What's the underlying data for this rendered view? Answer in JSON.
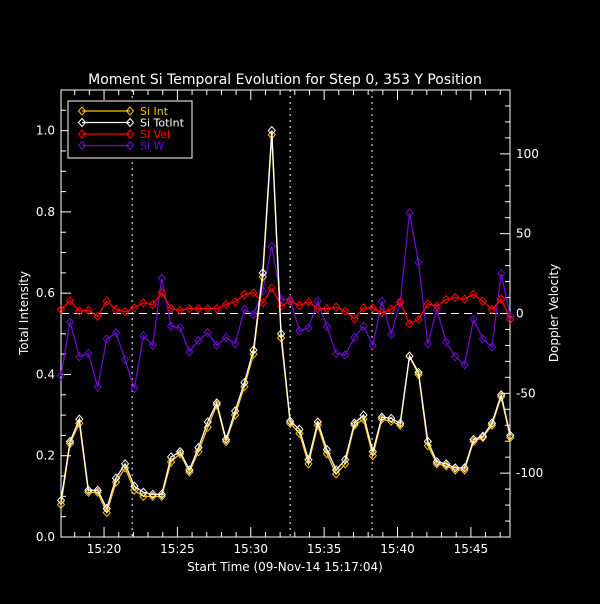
{
  "chart_data": {
    "type": "line",
    "title": "Moment Si Temporal Evolution for Step 0, 353 Y Position",
    "xlabel": "Start Time (09-Nov-14 15:17:04)",
    "ylabel": "Total Intensity",
    "y2label": "Doppler Velocity",
    "xlim": [
      "15:17:04",
      "15:47:40"
    ],
    "ylim": [
      0,
      1.1
    ],
    "y2lim": [
      -140,
      140
    ],
    "x_ticks": [
      "15:20",
      "15:25",
      "15:30",
      "15:35",
      "15:40",
      "15:45"
    ],
    "y_ticks": [
      "0.0",
      "0.2",
      "0.4",
      "0.6",
      "0.8",
      "1.0"
    ],
    "y2_ticks": [
      "-100",
      "-50",
      "0",
      "50",
      "100"
    ],
    "grid": false,
    "legend_position": "top-left",
    "reference_line_y2": 0,
    "vertical_markers": [
      "15:21:55",
      "15:32:41",
      "15:38:16"
    ],
    "x": [
      "15:17:04",
      "15:17:41",
      "15:18:19",
      "15:18:56",
      "15:19:34",
      "15:20:11",
      "15:20:49",
      "15:21:26",
      "15:22:04",
      "15:22:41",
      "15:23:19",
      "15:23:56",
      "15:24:34",
      "15:25:11",
      "15:25:49",
      "15:26:26",
      "15:27:04",
      "15:27:41",
      "15:28:19",
      "15:28:56",
      "15:29:34",
      "15:30:11",
      "15:30:49",
      "15:31:26",
      "15:32:04",
      "15:32:41",
      "15:33:19",
      "15:33:56",
      "15:34:34",
      "15:35:11",
      "15:35:49",
      "15:36:26",
      "15:37:04",
      "15:37:41",
      "15:38:19",
      "15:38:56",
      "15:39:34",
      "15:40:11",
      "15:40:49",
      "15:41:26",
      "15:42:04",
      "15:42:41",
      "15:43:19",
      "15:43:56",
      "15:44:34",
      "15:45:11",
      "15:45:49",
      "15:46:26",
      "15:47:04",
      "15:47:41"
    ],
    "series": [
      {
        "name": "Si Int",
        "axis": "left",
        "color": "#ffc000",
        "values": [
          0.08,
          0.23,
          0.28,
          0.11,
          0.11,
          0.06,
          0.135,
          0.17,
          0.115,
          0.1,
          0.1,
          0.1,
          0.185,
          0.205,
          0.16,
          0.21,
          0.27,
          0.325,
          0.235,
          0.3,
          0.37,
          0.45,
          0.64,
          0.99,
          0.49,
          0.28,
          0.255,
          0.18,
          0.275,
          0.205,
          0.155,
          0.18,
          0.275,
          0.29,
          0.2,
          0.29,
          0.285,
          0.275,
          0.445,
          0.4,
          0.225,
          0.18,
          0.175,
          0.165,
          0.165,
          0.235,
          0.245,
          0.275,
          0.345,
          0.245
        ]
      },
      {
        "name": "Si TotInt",
        "axis": "left",
        "color": "#ffffff",
        "values": [
          0.09,
          0.235,
          0.29,
          0.115,
          0.115,
          0.07,
          0.145,
          0.18,
          0.125,
          0.11,
          0.105,
          0.105,
          0.197,
          0.21,
          0.165,
          0.22,
          0.283,
          0.33,
          0.24,
          0.31,
          0.38,
          0.46,
          0.65,
          1.0,
          0.5,
          0.285,
          0.265,
          0.19,
          0.283,
          0.215,
          0.165,
          0.19,
          0.28,
          0.3,
          0.21,
          0.295,
          0.292,
          0.28,
          0.445,
          0.405,
          0.235,
          0.185,
          0.18,
          0.17,
          0.17,
          0.24,
          0.248,
          0.28,
          0.35,
          0.25
        ]
      },
      {
        "name": "Si Vel",
        "axis": "right",
        "color": "#ff0000",
        "values": [
          2.5,
          8,
          1.5,
          2,
          -1.7,
          7.7,
          2.5,
          1,
          3.5,
          6.7,
          5.6,
          13,
          3,
          2,
          3,
          3,
          3,
          3,
          5.6,
          7.3,
          12,
          13,
          6.7,
          16,
          4.6,
          7.7,
          5,
          7.3,
          3,
          3,
          4,
          1.5,
          -3.3,
          3.5,
          3.5,
          0.4,
          2.5,
          7.3,
          -6.5,
          -3.7,
          6,
          4.6,
          8.8,
          10,
          9,
          12,
          7.7,
          2.5,
          9,
          -3.7
        ]
      },
      {
        "name": "Si W",
        "axis": "right",
        "color": "#6a0dc8",
        "values": [
          -39,
          -5.4,
          -27,
          -25,
          -46,
          -16,
          -12,
          -29,
          -47,
          -14,
          -20,
          22,
          -8,
          -9,
          -24,
          -17,
          -12,
          -20,
          -15,
          -19,
          2.5,
          -0.6,
          14,
          42,
          8.8,
          8.8,
          -11,
          -9,
          7.7,
          -8,
          -25,
          -26,
          -15,
          -8,
          -20,
          7.7,
          -13,
          6.7,
          63,
          32,
          -19,
          2.5,
          -18,
          -27,
          -32,
          -3.7,
          -16,
          -21,
          25,
          -1.7
        ]
      }
    ]
  }
}
